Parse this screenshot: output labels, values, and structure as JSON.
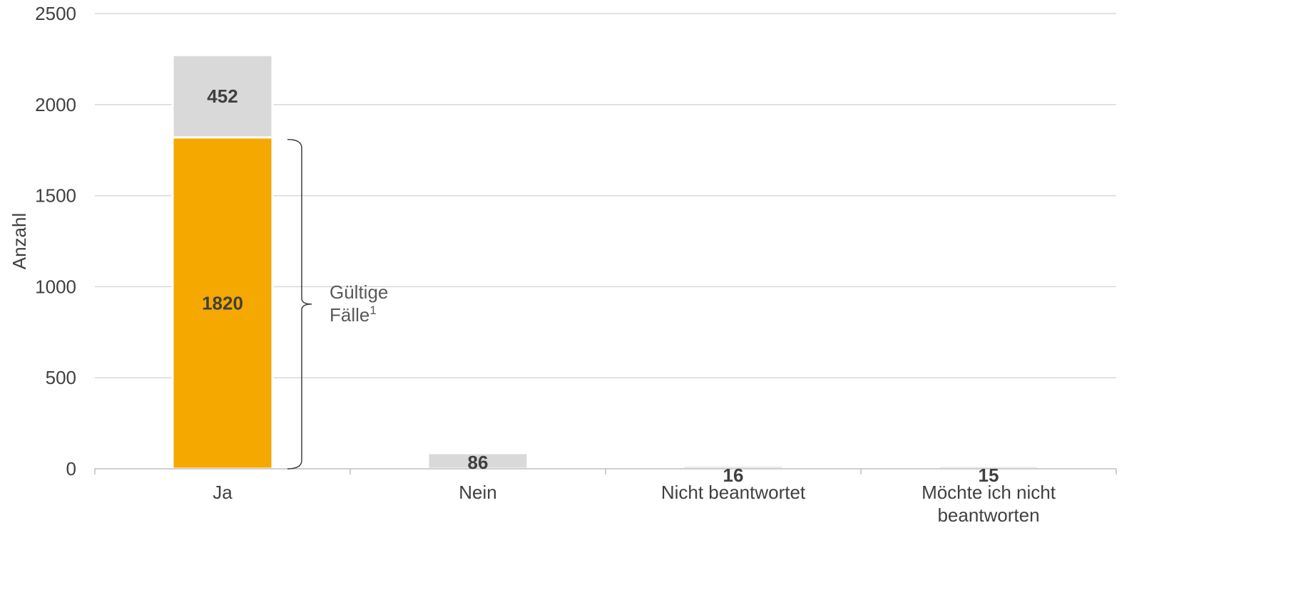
{
  "chart_data": {
    "type": "bar",
    "ylabel": "Anzahl",
    "ylim": [
      0,
      2500
    ],
    "yticks": [
      0,
      500,
      1000,
      1500,
      2000,
      2500
    ],
    "grid": true,
    "categories": [
      [
        "Ja"
      ],
      [
        "Nein"
      ],
      [
        "Nicht beantwortet"
      ],
      [
        "Möchte ich nicht",
        "beantworten"
      ]
    ],
    "series": [
      {
        "values": [
          1820,
          0,
          0,
          0
        ],
        "color": "#F5A800"
      },
      {
        "values": [
          452,
          86,
          16,
          15
        ],
        "color": "#D9D9D9"
      }
    ],
    "data_labels": [
      "1820",
      "452",
      "86",
      "16",
      "15"
    ],
    "annotation": {
      "text_line1": "Gültige",
      "text_line2": "Fälle",
      "superscript": "1",
      "brace_from": 0,
      "brace_to": 1820
    }
  },
  "colors": {
    "accent": "#F5A800",
    "secondary": "#D9D9D9",
    "grid": "#D9D9D9",
    "axis": "#BFBFBF",
    "text": "#404040"
  }
}
